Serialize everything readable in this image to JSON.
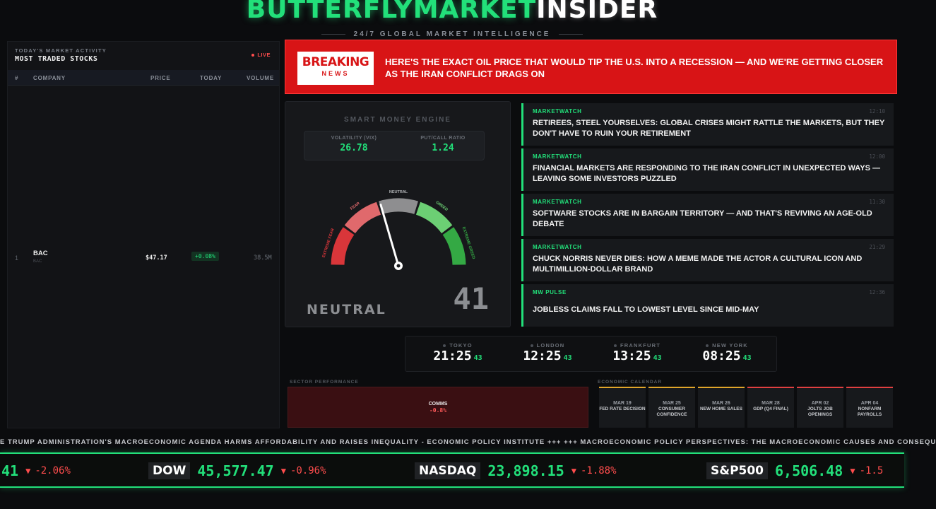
{
  "brand": {
    "part1": "BUTTERFLYMARKET",
    "part2": "INSIDER",
    "tagline": "24/7 GLOBAL MARKET INTELLIGENCE"
  },
  "stocks": {
    "subtitle": "TODAY'S MARKET ACTIVITY",
    "title": "MOST TRADED STOCKS",
    "live": "LIVE",
    "columns": [
      "#",
      "COMPANY",
      "PRICE",
      "TODAY",
      "VOLUME"
    ],
    "rows": [
      {
        "rank": "1",
        "company": "BAC",
        "ticker": "BAC",
        "price": "$47.17",
        "change": "+0.08%",
        "volume": "38.5M"
      }
    ]
  },
  "breaking": {
    "badge_top": "BREAKING",
    "badge_bottom": "NEWS",
    "headline": "Here's the exact oil price that would tip the U.S. into a recession — and we're getting closer as the Iran conflict drags on"
  },
  "smart_money": {
    "title": "SMART MONEY ENGINE",
    "vix_label": "VOLATILITY (VIX)",
    "vix_value": "26.78",
    "pcr_label": "PUT/CALL RATIO",
    "pcr_value": "1.24",
    "zones": [
      "EXTREME FEAR",
      "FEAR",
      "NEUTRAL",
      "GREED",
      "EXTREME GREED"
    ],
    "sentiment": "NEUTRAL",
    "value": "41",
    "score": 41,
    "colors": {
      "extreme_fear": "#d9363a",
      "fear": "#e0696c",
      "neutral": "#8e8e90",
      "greed": "#6ccf74",
      "extreme_greed": "#34a944"
    }
  },
  "news": [
    {
      "source": "MARKETWATCH",
      "time": "12:10",
      "headline": "Retirees, steel yourselves: Global crises might rattle the markets, but they don't have to ruin your retirement"
    },
    {
      "source": "MARKETWATCH",
      "time": "12:00",
      "headline": "Financial markets are responding to the Iran conflict in unexpected ways — leaving some investors puzzled"
    },
    {
      "source": "MARKETWATCH",
      "time": "11:30",
      "headline": "Software stocks are in bargain territory — and that's reviving an age-old debate"
    },
    {
      "source": "MARKETWATCH",
      "time": "21:29",
      "headline": "Chuck Norris never dies: How a meme made the actor a cultural icon and multimillion-dollar brand"
    },
    {
      "source": "MW PULSE",
      "time": "12:36",
      "headline": "Jobless claims fall to lowest level since mid-May"
    }
  ],
  "clocks": [
    {
      "city": "TOKYO",
      "time": "21:25",
      "sec": "43"
    },
    {
      "city": "LONDON",
      "time": "12:25",
      "sec": "43"
    },
    {
      "city": "FRANKFURT",
      "time": "13:25",
      "sec": "43"
    },
    {
      "city": "NEW YORK",
      "time": "08:25",
      "sec": "43"
    }
  ],
  "sector": {
    "label": "SECTOR PERFORMANCE",
    "name": "COMMS",
    "change": "-0.8%"
  },
  "calendar": {
    "label": "ECONOMIC CALENDAR",
    "events": [
      {
        "date": "MAR 19",
        "event": "FED RATE DECISION",
        "color": "#e0a52a"
      },
      {
        "date": "MAR 25",
        "event": "CONSUMER CONFIDENCE",
        "color": "#e0a52a"
      },
      {
        "date": "MAR 26",
        "event": "NEW HOME SALES",
        "color": "#e0a52a"
      },
      {
        "date": "MAR 28",
        "event": "GDP (Q4 FINAL)",
        "color": "#e04040"
      },
      {
        "date": "APR 02",
        "event": "JOLTS JOB OPENINGS",
        "color": "#e04040"
      },
      {
        "date": "APR 04",
        "event": "NONFARM PAYROLLS",
        "color": "#e04040"
      }
    ]
  },
  "ticker": "E TRUMP ADMINISTRATION'S MACROECONOMIC AGENDA HARMS AFFORDABILITY AND RAISES INEQUALITY - ECONOMIC POLICY INSTITUTE +++ +++ MACROECONOMIC POLICY PERSPECTIVES: THE MACROECONOMIC CAUSES AND CONSEQU",
  "indices": [
    {
      "name": "",
      "value": "41",
      "arrow": "▼",
      "change": "-2.06%"
    },
    {
      "name": "DOW",
      "value": "45,577.47",
      "arrow": "▼",
      "change": "-0.96%"
    },
    {
      "name": "NASDAQ",
      "value": "23,898.15",
      "arrow": "▼",
      "change": "-1.88%"
    },
    {
      "name": "S&P500",
      "value": "6,506.48",
      "arrow": "▼",
      "change": "-1.5"
    }
  ]
}
